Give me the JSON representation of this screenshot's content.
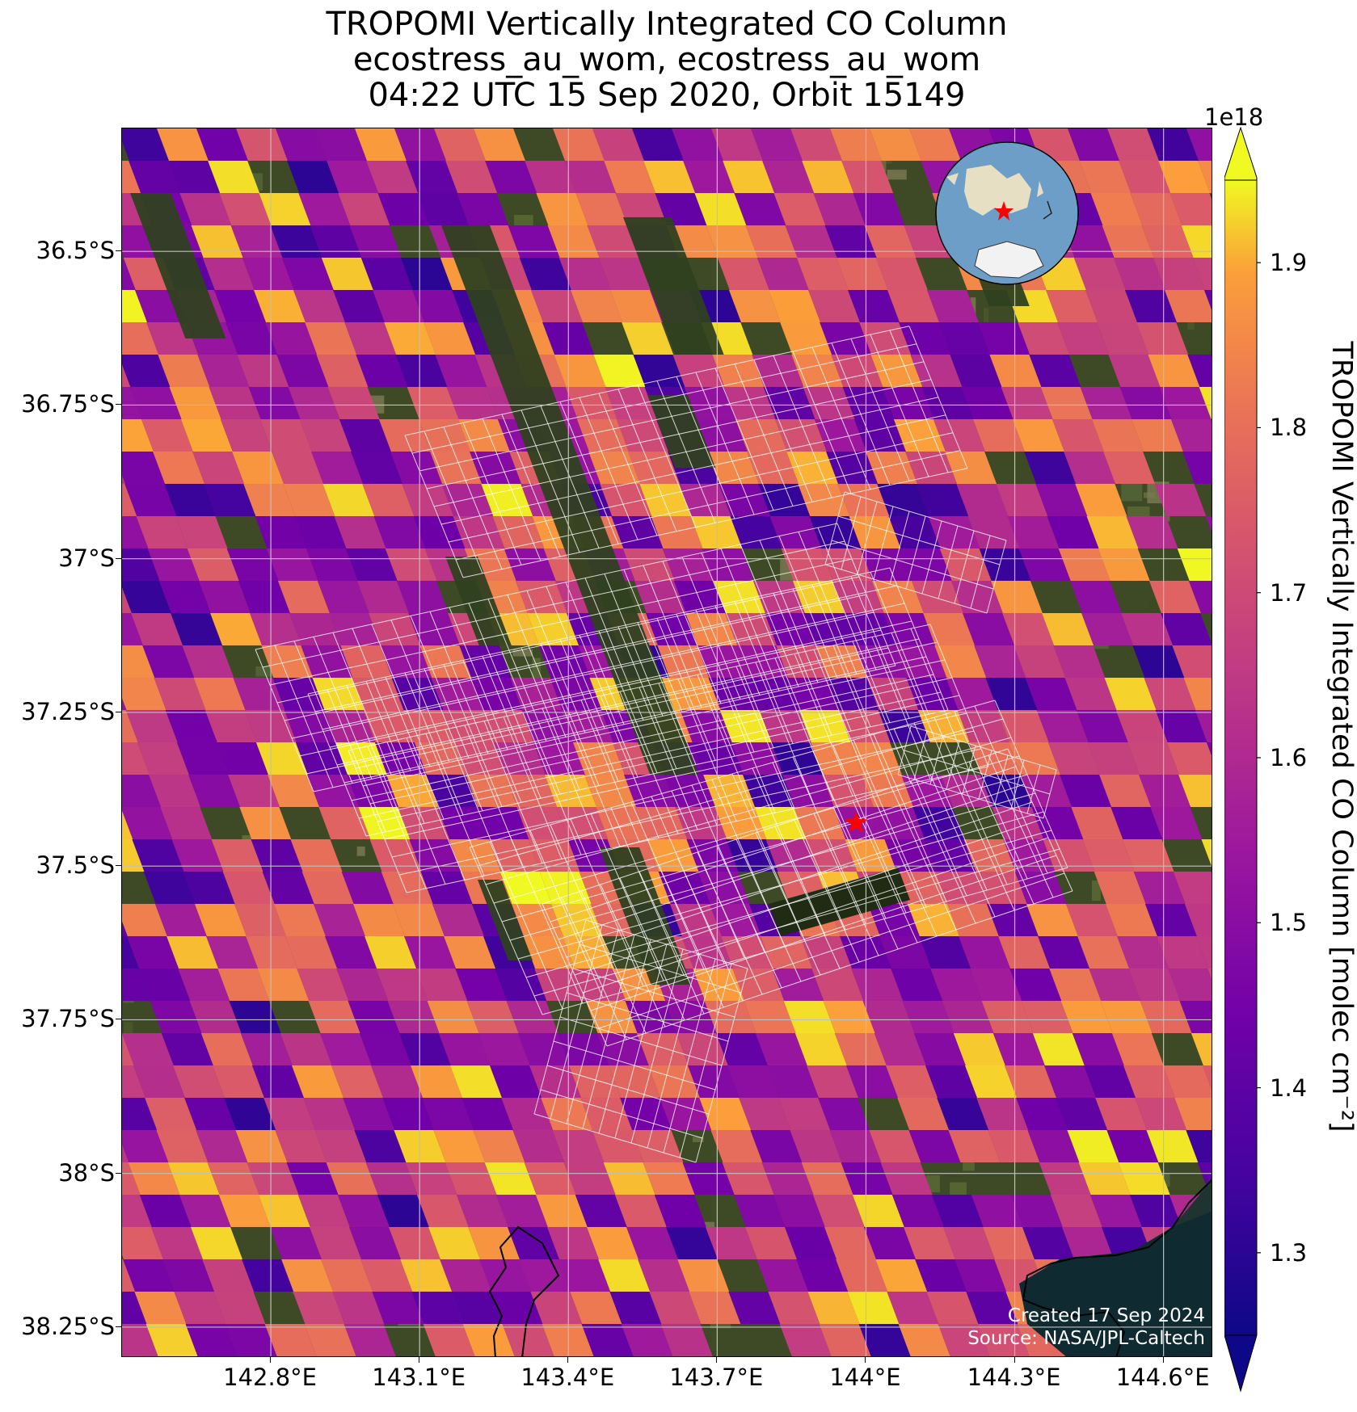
{
  "title": {
    "line1": "TROPOMI Vertically Integrated CO Column",
    "line2": "ecostress_au_wom, ecostress_au_wom",
    "line3": "04:22 UTC 15 Sep 2020, Orbit 15149"
  },
  "axes": {
    "lat_ticks": [
      "36.5°S",
      "36.75°S",
      "37°S",
      "37.25°S",
      "37.5°S",
      "37.75°S",
      "38°S",
      "38.25°S"
    ],
    "lon_ticks": [
      "142.8°E",
      "143.1°E",
      "143.4°E",
      "143.7°E",
      "144°E",
      "144.3°E",
      "144.6°E"
    ],
    "lat_values": [
      -36.5,
      -36.75,
      -37.0,
      -37.25,
      -37.5,
      -37.75,
      -38.0,
      -38.25
    ],
    "lon_values": [
      142.8,
      143.1,
      143.4,
      143.7,
      144.0,
      144.3,
      144.6
    ],
    "lat_range": [
      -38.3,
      -36.3
    ],
    "lon_range": [
      142.5,
      144.7
    ],
    "grid": true
  },
  "marker": {
    "lat": -37.43,
    "lon": 143.98,
    "color": "#ff0000",
    "shape": "star"
  },
  "colorbar": {
    "title": "TROPOMI Vertically Integrated CO Column [molec cm⁻²]",
    "exponent": "1e18",
    "ticks": [
      "1.3",
      "1.4",
      "1.5",
      "1.6",
      "1.7",
      "1.8",
      "1.9"
    ],
    "tick_values": [
      1.3,
      1.4,
      1.5,
      1.6,
      1.7,
      1.8,
      1.9
    ],
    "range": [
      1.25,
      1.95
    ],
    "colormap": "plasma",
    "extend": "both"
  },
  "inset_globe": {
    "ocean_color": "#6d9ec8",
    "land_color": "#e7dfc4",
    "marker_color": "#ff0000"
  },
  "credit": {
    "line1": "Created 17 Sep 2024",
    "line2": "Source: NASA/JPL-Caltech"
  },
  "colors": {
    "overlay_grid": "#ffffff",
    "gridline": "#bfbfbf",
    "coastline": "#000000"
  }
}
